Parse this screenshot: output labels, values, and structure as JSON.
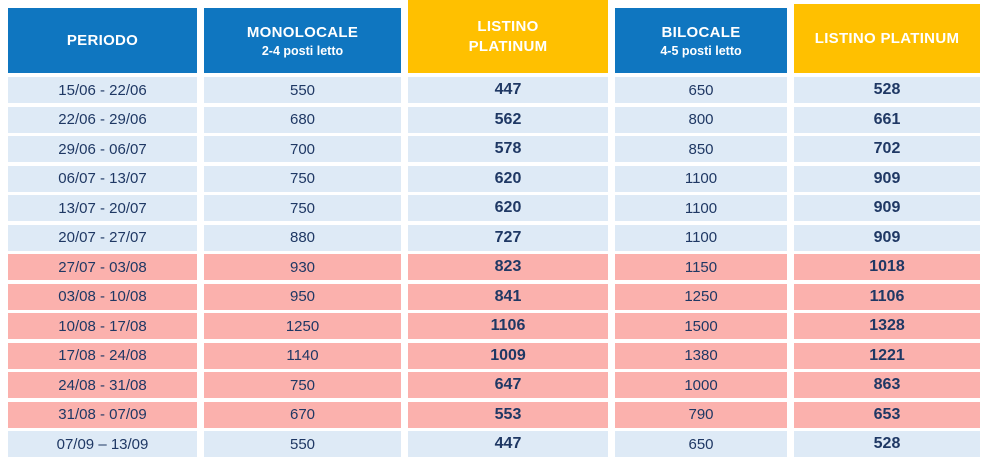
{
  "colors": {
    "header_blue": "#0F76C0",
    "header_yellow": "#FFC000",
    "row_season_low": "#DEEAF6",
    "row_season_high": "#FBB1AD",
    "text_navy": "#1F3864",
    "header_text": "#FFFFFF"
  },
  "header": {
    "periodo": {
      "title": "PERIODO"
    },
    "monolocale": {
      "title": "MONOLOCALE",
      "subtitle": "2-4 posti letto"
    },
    "listino_platinum_mono": {
      "line1": "LISTINO",
      "line2": "PLATINUM"
    },
    "bilocale": {
      "title": "BILOCALE",
      "subtitle": "4-5 posti letto"
    },
    "listino_platinum_bilo": {
      "title": "LISTINO PLATINUM"
    }
  },
  "rows": [
    {
      "period": "15/06 - 22/06",
      "monolocale": "550",
      "listino_platinum_mono": "447",
      "bilocale": "650",
      "listino_platinum_bilo": "528",
      "season": "low"
    },
    {
      "period": "22/06 - 29/06",
      "monolocale": "680",
      "listino_platinum_mono": "562",
      "bilocale": "800",
      "listino_platinum_bilo": "661",
      "season": "low"
    },
    {
      "period": "29/06 - 06/07",
      "monolocale": "700",
      "listino_platinum_mono": "578",
      "bilocale": "850",
      "listino_platinum_bilo": "702",
      "season": "low"
    },
    {
      "period": "06/07 - 13/07",
      "monolocale": "750",
      "listino_platinum_mono": "620",
      "bilocale": "1100",
      "listino_platinum_bilo": "909",
      "season": "low"
    },
    {
      "period": "13/07 - 20/07",
      "monolocale": "750",
      "listino_platinum_mono": "620",
      "bilocale": "1100",
      "listino_platinum_bilo": "909",
      "season": "low"
    },
    {
      "period": "20/07 - 27/07",
      "monolocale": "880",
      "listino_platinum_mono": "727",
      "bilocale": "1100",
      "listino_platinum_bilo": "909",
      "season": "low"
    },
    {
      "period": "27/07 - 03/08",
      "monolocale": "930",
      "listino_platinum_mono": "823",
      "bilocale": "1150",
      "listino_platinum_bilo": "1018",
      "season": "high"
    },
    {
      "period": "03/08 - 10/08",
      "monolocale": "950",
      "listino_platinum_mono": "841",
      "bilocale": "1250",
      "listino_platinum_bilo": "1106",
      "season": "high"
    },
    {
      "period": "10/08 - 17/08",
      "monolocale": "1250",
      "listino_platinum_mono": "1106",
      "bilocale": "1500",
      "listino_platinum_bilo": "1328",
      "season": "high"
    },
    {
      "period": "17/08 - 24/08",
      "monolocale": "1140",
      "listino_platinum_mono": "1009",
      "bilocale": "1380",
      "listino_platinum_bilo": "1221",
      "season": "high"
    },
    {
      "period": "24/08 - 31/08",
      "monolocale": "750",
      "listino_platinum_mono": "647",
      "bilocale": "1000",
      "listino_platinum_bilo": "863",
      "season": "high"
    },
    {
      "period": "31/08 - 07/09",
      "monolocale": "670",
      "listino_platinum_mono": "553",
      "bilocale": "790",
      "listino_platinum_bilo": "653",
      "season": "high"
    },
    {
      "period": "07/09 – 13/09",
      "monolocale": "550",
      "listino_platinum_mono": "447",
      "bilocale": "650",
      "listino_platinum_bilo": "528",
      "season": "low"
    }
  ]
}
